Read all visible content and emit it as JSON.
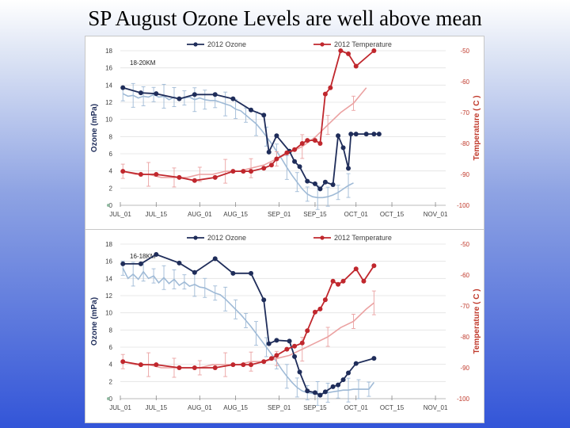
{
  "slide": {
    "title": "SP August Ozone Levels are well above mean"
  },
  "colors": {
    "ozone_2012": "#1f2d5a",
    "ozone_mean": "#9fbad6",
    "temp_2012": "#c0272d",
    "temp_mean": "#eba2a2",
    "right_axis": "#c0392b"
  },
  "chart_data": [
    {
      "type": "line",
      "annotation": "18-20KM",
      "ylabel": "Ozone (mPa)",
      "y2label": "Temperature ( C )",
      "ylim": [
        0,
        18
      ],
      "y_ticks": [
        "0",
        "2",
        "4",
        "6",
        "8",
        "10",
        "12",
        "14",
        "16",
        "18"
      ],
      "y2lim": [
        -100,
        -50
      ],
      "y2_ticks": [
        "-100",
        "-90",
        "-80",
        "-70",
        "-60",
        "-50"
      ],
      "xlim": [
        0,
        127
      ],
      "x_tick_values": [
        0,
        14,
        31,
        45,
        62,
        76,
        92,
        106,
        123
      ],
      "x_tick_labels": [
        "JUL_01",
        "JUL_15",
        "AUG_01",
        "AUG_15",
        "SEP_01",
        "SEP_15",
        "OCT_01",
        "OCT_15",
        "NOV_01"
      ],
      "legend": [
        "2012 Ozone",
        "2012 Temperature"
      ],
      "grid": true,
      "series": [
        {
          "name": "2012 Ozone",
          "axis": "left",
          "x": [
            1,
            8,
            14,
            23,
            29,
            37,
            44,
            51,
            56,
            58,
            61,
            66,
            68,
            70,
            73,
            76,
            78,
            80,
            83,
            85,
            87,
            89,
            90,
            92,
            96,
            99,
            101
          ],
          "y": [
            13.7,
            13.1,
            13.0,
            12.4,
            12.9,
            12.9,
            12.4,
            11.1,
            10.5,
            6.2,
            8.1,
            6.3,
            5.1,
            4.5,
            2.8,
            2.5,
            1.9,
            2.7,
            2.4,
            8.1,
            6.7,
            4.3,
            8.3,
            8.3,
            8.3,
            8.3,
            8.3
          ]
        },
        {
          "axis": "left",
          "x": [
            1,
            3,
            5,
            7,
            9,
            11,
            13,
            15,
            17,
            19,
            21,
            23,
            25,
            27,
            29,
            31,
            33,
            35,
            37,
            39,
            41,
            43,
            45,
            47,
            49,
            51,
            53,
            55,
            57,
            59,
            61,
            63,
            65,
            67,
            69,
            71,
            73,
            75,
            77,
            79,
            81,
            83,
            85,
            87,
            89,
            91
          ],
          "y": [
            13.0,
            12.7,
            12.8,
            12.5,
            12.7,
            12.6,
            12.9,
            12.6,
            12.7,
            12.3,
            12.6,
            12.4,
            12.5,
            12.6,
            12.3,
            12.5,
            12.3,
            12.2,
            12.2,
            12.0,
            11.8,
            11.6,
            11.2,
            11.0,
            10.5,
            10.0,
            9.5,
            8.8,
            8.0,
            7.2,
            6.3,
            5.4,
            4.4,
            3.5,
            2.7,
            1.9,
            1.3,
            1.0,
            0.9,
            0.9,
            1.0,
            1.2,
            1.5,
            1.9,
            2.3,
            2.6
          ]
        },
        {
          "name": "2012 Temperature",
          "axis": "right",
          "x": [
            1,
            8,
            14,
            23,
            29,
            37,
            44,
            48,
            51,
            56,
            59,
            61,
            65,
            68,
            71,
            73,
            76,
            78,
            80,
            82,
            86,
            89,
            92,
            99
          ],
          "y": [
            -89,
            -90,
            -90,
            -91,
            -92,
            -91,
            -89,
            -89,
            -89,
            -88,
            -87,
            -85,
            -83,
            -82,
            -80,
            -79,
            -79,
            -80,
            -64,
            -62,
            -50,
            -51,
            -55,
            -50
          ]
        },
        {
          "axis": "right",
          "x": [
            1,
            6,
            11,
            16,
            21,
            26,
            31,
            36,
            41,
            46,
            51,
            56,
            61,
            66,
            71,
            76,
            81,
            86,
            91,
            96
          ],
          "y": [
            -89,
            -90,
            -90,
            -91,
            -91,
            -91,
            -90,
            -90,
            -89,
            -89,
            -88,
            -87,
            -85,
            -83,
            -81,
            -78,
            -74,
            -70,
            -67,
            -62
          ]
        }
      ]
    },
    {
      "type": "line",
      "annotation": "16-18KM",
      "ylabel": "Ozone (mPa)",
      "y2label": "Temperature ( C )",
      "ylim": [
        0,
        18
      ],
      "y_ticks": [
        "0",
        "2",
        "4",
        "6",
        "8",
        "10",
        "12",
        "14",
        "16",
        "18"
      ],
      "y2lim": [
        -100,
        -50
      ],
      "y2_ticks": [
        "-100",
        "-90",
        "-80",
        "-70",
        "-60",
        "-50"
      ],
      "xlim": [
        0,
        127
      ],
      "x_tick_values": [
        0,
        14,
        31,
        45,
        62,
        76,
        92,
        106,
        123
      ],
      "x_tick_labels": [
        "JUL_01",
        "JUL_15",
        "AUG_01",
        "AUG_15",
        "SEP_01",
        "SEP_15",
        "OCT_01",
        "OCT_15",
        "NOV_01"
      ],
      "legend": [
        "2012 Ozone",
        "2012 Temperature"
      ],
      "grid": true,
      "series": [
        {
          "name": "2012 Ozone",
          "axis": "left",
          "x": [
            1,
            8,
            14,
            23,
            29,
            37,
            44,
            51,
            56,
            58,
            61,
            66,
            68,
            70,
            73,
            76,
            78,
            80,
            83,
            85,
            87,
            89,
            92,
            99
          ],
          "y": [
            15.7,
            15.7,
            16.8,
            15.8,
            14.7,
            16.3,
            14.6,
            14.6,
            11.5,
            6.4,
            6.8,
            6.7,
            4.9,
            3.1,
            0.9,
            0.7,
            0.4,
            0.8,
            1.4,
            1.6,
            2.2,
            3.0,
            4.1,
            4.7
          ]
        },
        {
          "axis": "left",
          "x": [
            1,
            3,
            5,
            7,
            9,
            11,
            13,
            15,
            17,
            19,
            21,
            23,
            25,
            27,
            29,
            31,
            33,
            35,
            37,
            39,
            41,
            43,
            45,
            47,
            49,
            51,
            53,
            55,
            57,
            59,
            61,
            63,
            65,
            67,
            69,
            71,
            73,
            75,
            77,
            79,
            81,
            83,
            85,
            87,
            89,
            91,
            93,
            95,
            97,
            99
          ],
          "y": [
            15.2,
            14.0,
            14.5,
            13.9,
            14.8,
            14.0,
            14.3,
            13.5,
            14.1,
            13.4,
            13.9,
            13.2,
            13.6,
            13.1,
            13.3,
            13.0,
            12.9,
            12.6,
            12.3,
            12.1,
            11.6,
            11.0,
            10.4,
            9.8,
            9.1,
            8.4,
            7.6,
            6.8,
            6.0,
            5.2,
            4.3,
            3.4,
            2.6,
            1.9,
            1.3,
            0.9,
            0.7,
            0.6,
            0.6,
            0.6,
            0.7,
            0.8,
            0.9,
            1.0,
            1.0,
            1.1,
            1.1,
            1.1,
            1.1,
            1.9
          ]
        },
        {
          "name": "2012 Temperature",
          "axis": "right",
          "x": [
            1,
            8,
            14,
            23,
            29,
            37,
            44,
            48,
            51,
            56,
            59,
            61,
            65,
            68,
            71,
            73,
            76,
            78,
            80,
            83,
            85,
            87,
            92,
            95,
            99
          ],
          "y": [
            -88,
            -89,
            -89,
            -90,
            -90,
            -90,
            -89,
            -89,
            -89,
            -88,
            -87,
            -86,
            -84,
            -83,
            -82,
            -78,
            -72,
            -71,
            -68,
            -62,
            -63,
            -62,
            -58,
            -62,
            -57
          ]
        },
        {
          "axis": "right",
          "x": [
            1,
            6,
            11,
            16,
            21,
            26,
            31,
            36,
            41,
            46,
            51,
            56,
            61,
            66,
            71,
            76,
            81,
            86,
            91,
            96,
            99
          ],
          "y": [
            -88,
            -89,
            -89,
            -90,
            -90,
            -90,
            -90,
            -89,
            -89,
            -89,
            -88,
            -88,
            -87,
            -86,
            -84,
            -82,
            -80,
            -77,
            -75,
            -71,
            -69
          ]
        }
      ]
    }
  ]
}
